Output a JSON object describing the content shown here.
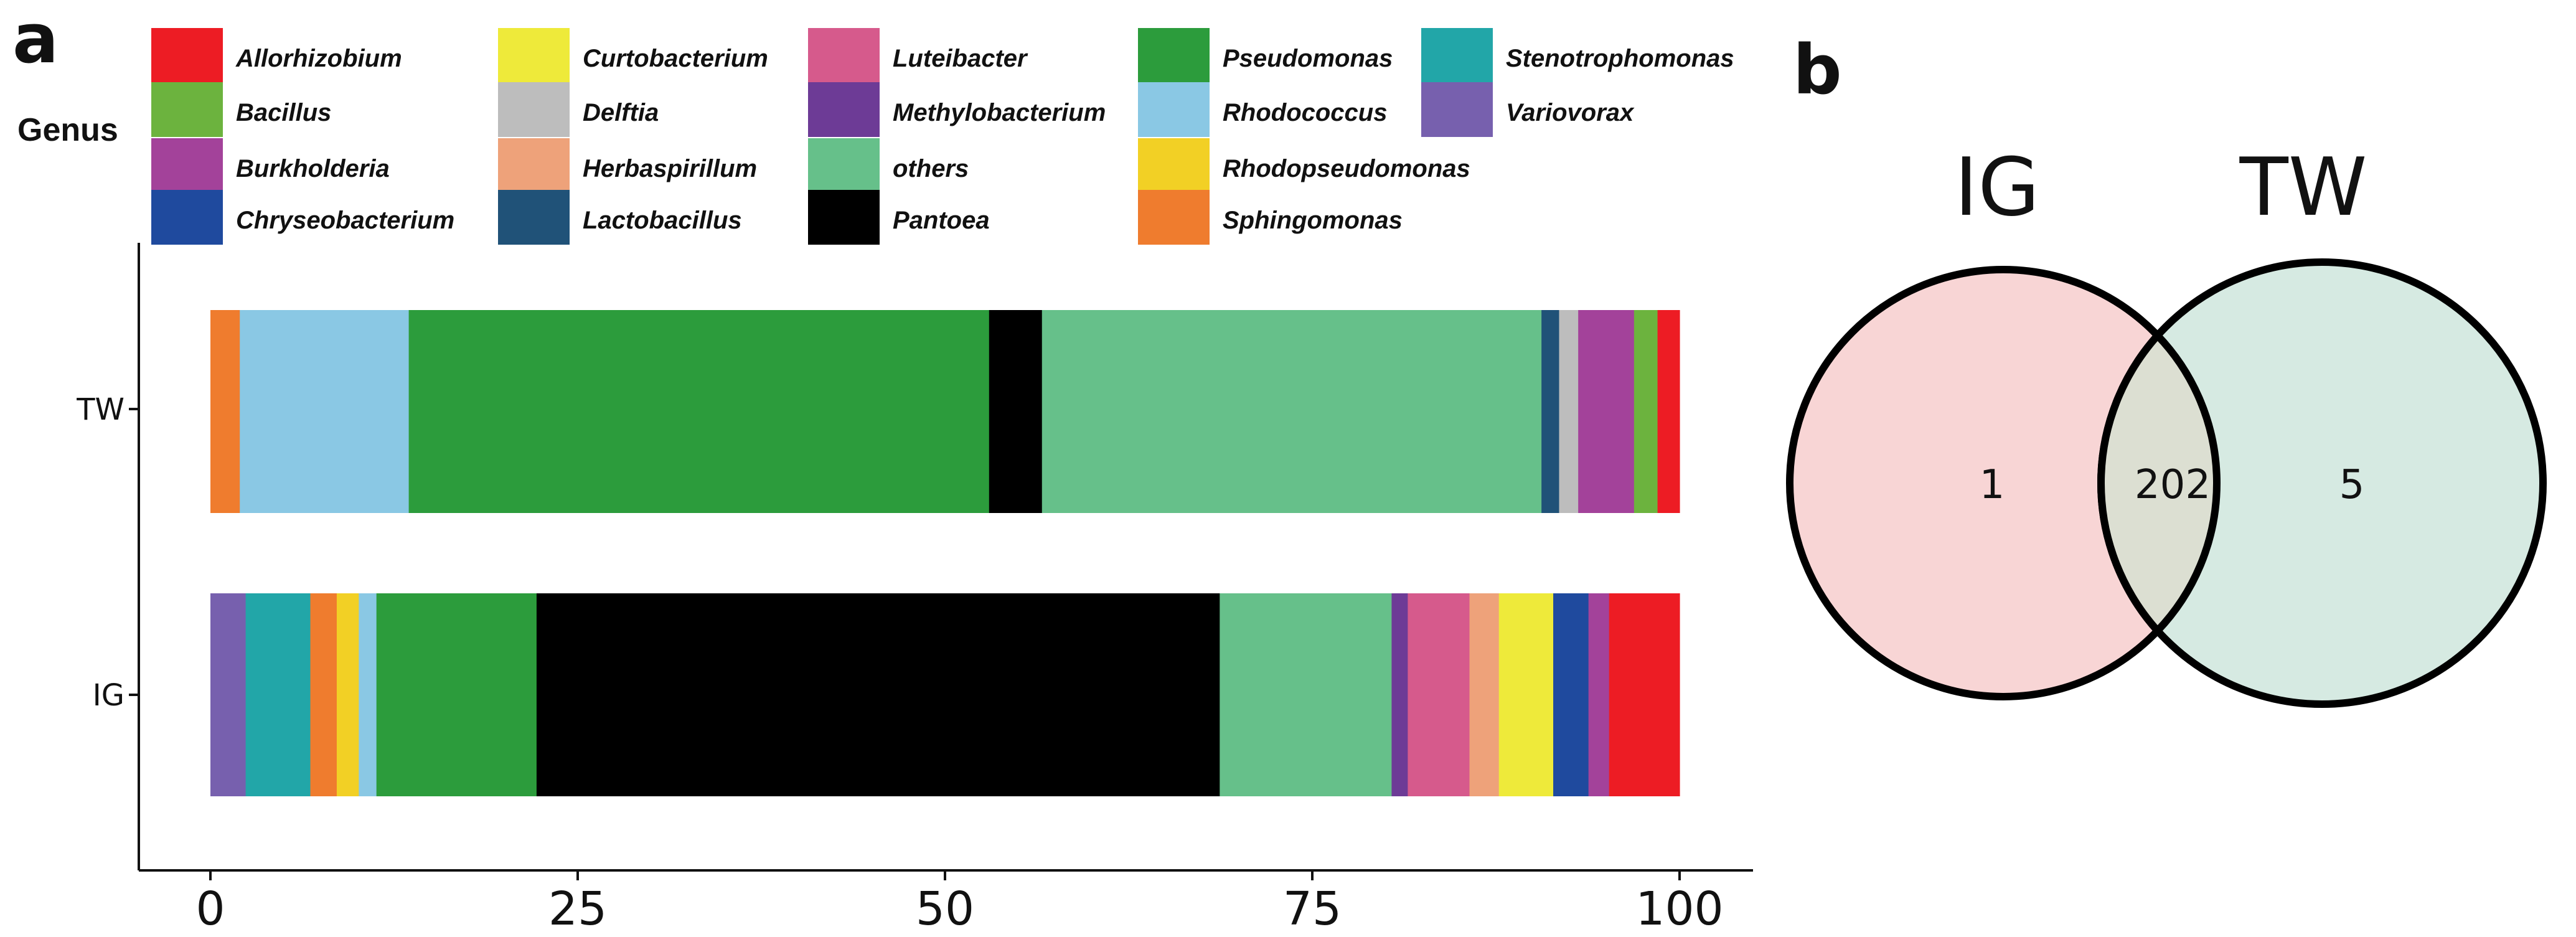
{
  "panels": {
    "a_label": "a",
    "b_label": "b"
  },
  "legend": {
    "title": "Genus",
    "items": [
      {
        "label": "Allorhizobium",
        "color": "#ed1c24"
      },
      {
        "label": "Bacillus",
        "color": "#6cb33e"
      },
      {
        "label": "Burkholderia",
        "color": "#a3429a"
      },
      {
        "label": "Chryseobacterium",
        "color": "#1f4a9e"
      },
      {
        "label": "Curtobacterium",
        "color": "#eeea3a"
      },
      {
        "label": "Delftia",
        "color": "#bdbdbd"
      },
      {
        "label": "Herbaspirillum",
        "color": "#eea27a"
      },
      {
        "label": "Lactobacillus",
        "color": "#205278"
      },
      {
        "label": "Luteibacter",
        "color": "#d65a8c"
      },
      {
        "label": "Methylobacterium",
        "color": "#6d3b96"
      },
      {
        "label": "others",
        "color": "#66c08a"
      },
      {
        "label": "Pantoea",
        "color": "#000000"
      },
      {
        "label": "Pseudomonas",
        "color": "#2c9c3c"
      },
      {
        "label": "Rhodococcus",
        "color": "#8ac8e4"
      },
      {
        "label": "Rhodopseudomonas",
        "color": "#f2d025"
      },
      {
        "label": "Sphingomonas",
        "color": "#ef7c2e"
      },
      {
        "label": "Stenotrophomonas",
        "color": "#22a6a8"
      },
      {
        "label": "Variovorax",
        "color": "#7760ae"
      }
    ]
  },
  "chart_data": [
    {
      "type": "bar",
      "orientation": "horizontal",
      "stacked": true,
      "title": "",
      "xlabel": "",
      "ylabel": "",
      "xlim": [
        0,
        100
      ],
      "xticks": [
        0,
        25,
        50,
        75,
        100
      ],
      "categories": [
        "TW",
        "IG"
      ],
      "series": [
        {
          "name": "TW",
          "segments": [
            {
              "genus": "Sphingomonas",
              "value": 2.0
            },
            {
              "genus": "Rhodococcus",
              "value": 11.5
            },
            {
              "genus": "Pseudomonas",
              "value": 39.5
            },
            {
              "genus": "Pantoea",
              "value": 3.6
            },
            {
              "genus": "others",
              "value": 34.0
            },
            {
              "genus": "Lactobacillus",
              "value": 1.2
            },
            {
              "genus": "Delftia",
              "value": 1.3
            },
            {
              "genus": "Burkholderia",
              "value": 3.8
            },
            {
              "genus": "Bacillus",
              "value": 1.6
            },
            {
              "genus": "Allorhizobium",
              "value": 1.5
            }
          ]
        },
        {
          "name": "IG",
          "segments": [
            {
              "genus": "Variovorax",
              "value": 2.4
            },
            {
              "genus": "Stenotrophomonas",
              "value": 4.4
            },
            {
              "genus": "Sphingomonas",
              "value": 1.8
            },
            {
              "genus": "Rhodopseudomonas",
              "value": 1.5
            },
            {
              "genus": "Rhodococcus",
              "value": 1.2
            },
            {
              "genus": "Pseudomonas",
              "value": 10.9
            },
            {
              "genus": "Pantoea",
              "value": 46.5
            },
            {
              "genus": "others",
              "value": 11.7
            },
            {
              "genus": "Methylobacterium",
              "value": 1.1
            },
            {
              "genus": "Luteibacter",
              "value": 4.2
            },
            {
              "genus": "Herbaspirillum",
              "value": 2.0
            },
            {
              "genus": "Curtobacterium",
              "value": 3.7
            },
            {
              "genus": "Chryseobacterium",
              "value": 2.4
            },
            {
              "genus": "Burkholderia",
              "value": 1.4
            },
            {
              "genus": "Allorhizobium",
              "value": 4.8
            }
          ]
        }
      ]
    },
    {
      "type": "venn",
      "sets": [
        {
          "name": "IG",
          "only": 1,
          "color": "#f8d5d5"
        },
        {
          "name": "TW",
          "only": 5,
          "color": "#d6eae2"
        }
      ],
      "intersection": 202,
      "intersection_color": "#dcdfd2"
    }
  ]
}
